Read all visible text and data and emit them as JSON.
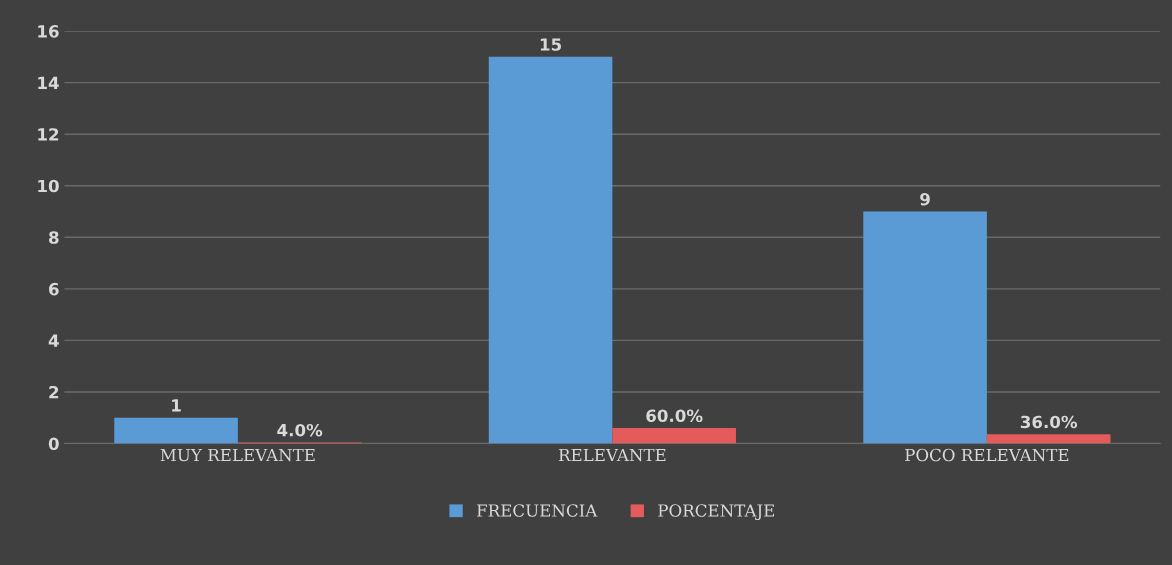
{
  "chart_data": {
    "type": "bar",
    "categories": [
      "MUY RELEVANTE",
      "RELEVANTE",
      "POCO RELEVANTE"
    ],
    "series": [
      {
        "name": "FRECUENCIA",
        "color": "#5b9bd5",
        "values": [
          1,
          15,
          9
        ],
        "value_labels": [
          "1",
          "15",
          "9"
        ]
      },
      {
        "name": "PORCENTAJE",
        "color": "#e35b5b",
        "values": [
          0.04,
          0.6,
          0.36
        ],
        "value_labels": [
          "4.0%",
          "60.0%",
          "36.0%"
        ]
      }
    ],
    "ylim": [
      0,
      16
    ],
    "yticks": [
      0,
      2,
      4,
      6,
      8,
      10,
      12,
      14,
      16
    ],
    "grid": "y",
    "legend": "bottom"
  }
}
